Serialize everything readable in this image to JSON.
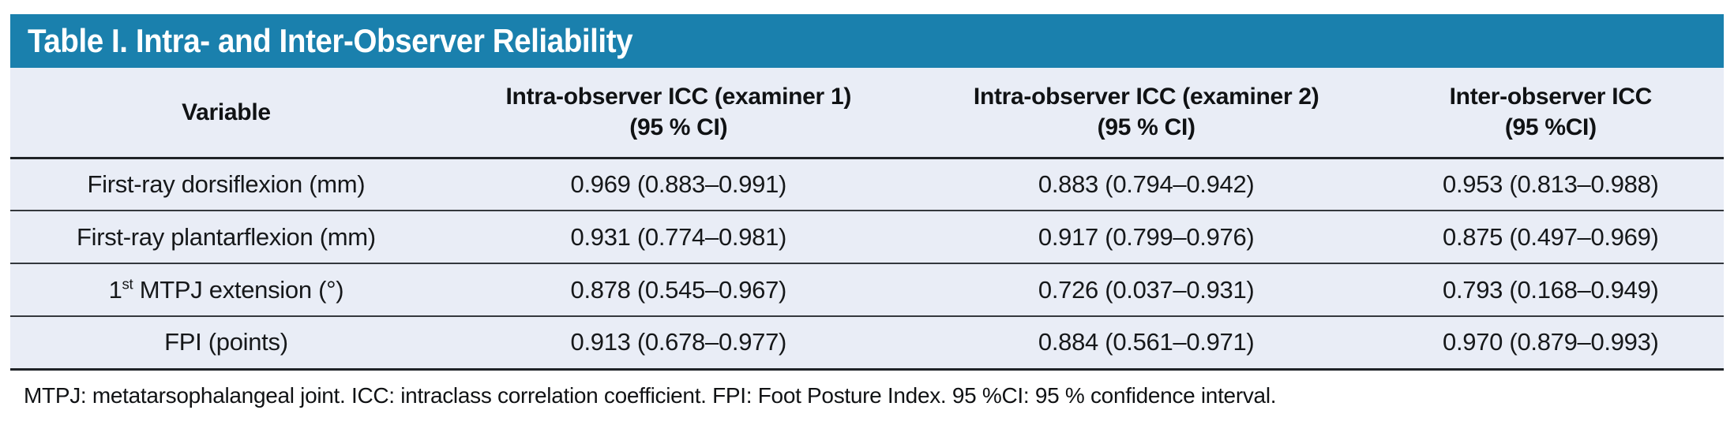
{
  "title": "Table I. Intra- and Inter-Observer Reliability",
  "colors": {
    "accent_teal": "#1a80ad",
    "row_background": "#e9edf6",
    "rule_dark": "#1f2327",
    "rule_row": "#34383d"
  },
  "table": {
    "columns": [
      {
        "label_line1": "Variable",
        "label_line2": ""
      },
      {
        "label_line1": "Intra-observer ICC (examiner 1)",
        "label_line2": "(95 % CI)"
      },
      {
        "label_line1": "Intra-observer ICC (examiner 2)",
        "label_line2": "(95 % CI)"
      },
      {
        "label_line1": "Inter-observer ICC",
        "label_line2": "(95 %CI)"
      }
    ],
    "rows": [
      {
        "variable": "First-ray dorsiflexion (mm)",
        "icc_examiner1": "0.969 (0.883–0.991)",
        "icc_examiner2": "0.883 (0.794–0.942)",
        "inter_observer": "0.953 (0.813–0.988)"
      },
      {
        "variable": "First-ray plantarflexion (mm)",
        "icc_examiner1": "0.931 (0.774–0.981)",
        "icc_examiner2": "0.917 (0.799–0.976)",
        "inter_observer": "0.875 (0.497–0.969)"
      },
      {
        "variable_base": "1",
        "variable_superscript": "st",
        "variable_rest": " MTPJ extension (°)",
        "icc_examiner1": "0.878 (0.545–0.967)",
        "icc_examiner2": "0.726 (0.037–0.931)",
        "inter_observer": "0.793 (0.168–0.949)"
      },
      {
        "variable": "FPI (points)",
        "icc_examiner1": "0.913 (0.678–0.977)",
        "icc_examiner2": "0.884 (0.561–0.971)",
        "inter_observer": "0.970 (0.879–0.993)"
      }
    ]
  },
  "footnote": "MTPJ: metatarsophalangeal joint. ICC: intraclass correlation coefficient. FPI: Foot Posture Index. 95 %CI: 95 % confidence interval."
}
